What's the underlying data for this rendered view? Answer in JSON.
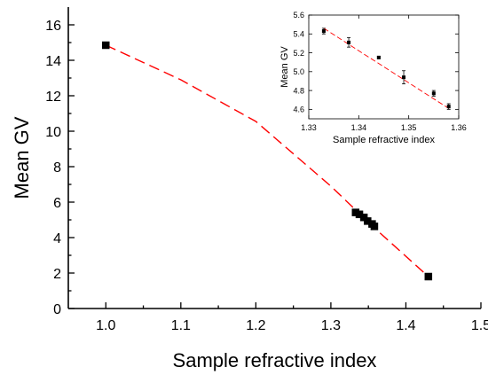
{
  "chart_data": [
    {
      "type": "scatter",
      "xlabel": "Sample refractive index",
      "ylabel": "Mean GV",
      "xlim": [
        0.95,
        1.5
      ],
      "ylim": [
        0,
        17
      ],
      "xticks": [
        1.0,
        1.1,
        1.2,
        1.3,
        1.4,
        1.5
      ],
      "yticks": [
        0,
        2,
        4,
        6,
        8,
        10,
        12,
        14,
        16
      ],
      "grid": false,
      "series": [
        {
          "marker": "square",
          "color": "#000000",
          "points": [
            {
              "x": 1.0,
              "y": 14.85
            },
            {
              "x": 1.333,
              "y": 5.42
            },
            {
              "x": 1.338,
              "y": 5.31
            },
            {
              "x": 1.344,
              "y": 5.14
            },
            {
              "x": 1.349,
              "y": 4.93
            },
            {
              "x": 1.355,
              "y": 4.77
            },
            {
              "x": 1.358,
              "y": 4.63
            },
            {
              "x": 1.43,
              "y": 1.8
            }
          ]
        }
      ],
      "fit_line": {
        "style": "dashed",
        "color": "#ff0000",
        "points": [
          {
            "x": 1.0,
            "y": 14.85
          },
          {
            "x": 1.1,
            "y": 12.9
          },
          {
            "x": 1.2,
            "y": 10.55
          },
          {
            "x": 1.3,
            "y": 6.9
          },
          {
            "x": 1.358,
            "y": 4.55
          },
          {
            "x": 1.43,
            "y": 1.8
          }
        ]
      }
    },
    {
      "type": "scatter",
      "role": "inset",
      "xlabel": "Sample refractive index",
      "ylabel": "Mean GV",
      "xlim": [
        1.33,
        1.36
      ],
      "ylim": [
        4.5,
        5.6
      ],
      "xticks": [
        1.33,
        1.34,
        1.35,
        1.36
      ],
      "yticks": [
        4.6,
        4.8,
        5.0,
        5.2,
        5.4,
        5.6
      ],
      "grid": false,
      "series": [
        {
          "marker": "square",
          "color": "#000000",
          "error_bars": true,
          "points": [
            {
              "x": 1.333,
              "y": 5.43,
              "err": 0.03
            },
            {
              "x": 1.338,
              "y": 5.31,
              "err": 0.05
            },
            {
              "x": 1.344,
              "y": 5.15,
              "err": 0.01
            },
            {
              "x": 1.349,
              "y": 4.94,
              "err": 0.07
            },
            {
              "x": 1.355,
              "y": 4.77,
              "err": 0.03
            },
            {
              "x": 1.358,
              "y": 4.63,
              "err": 0.03
            }
          ]
        }
      ],
      "fit_line": {
        "style": "dashed",
        "color": "#ff0000",
        "points": [
          {
            "x": 1.333,
            "y": 5.46
          },
          {
            "x": 1.358,
            "y": 4.61
          }
        ]
      }
    }
  ]
}
